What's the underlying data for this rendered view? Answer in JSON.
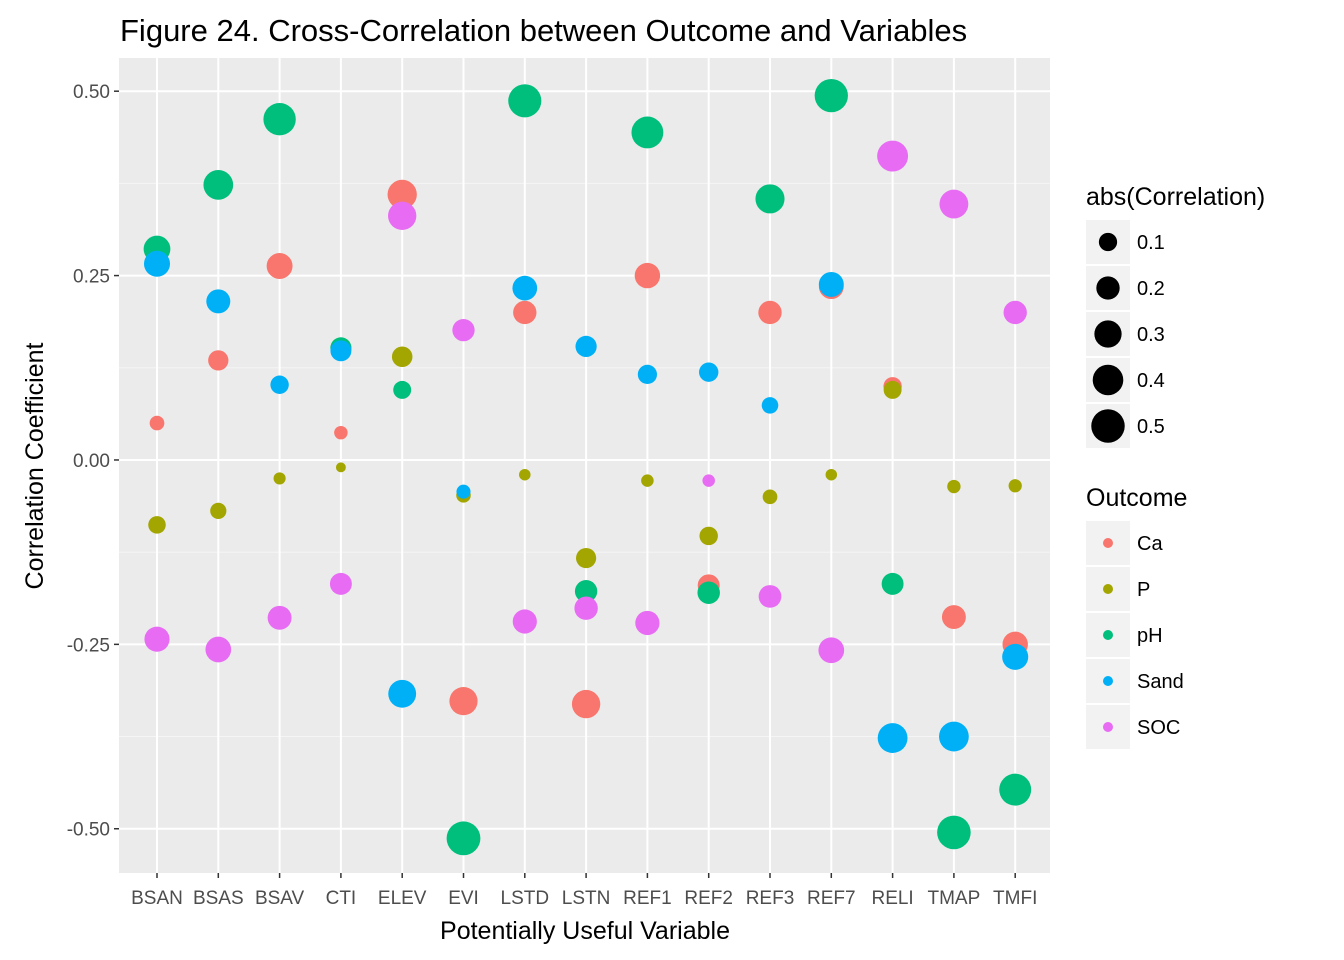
{
  "chart_data": {
    "type": "scatter",
    "title": "Figure 24. Cross-Correlation between Outcome and Variables",
    "xlabel": "Potentially Useful Variable",
    "ylabel": "Correlation Coefficient",
    "categories": [
      "BSAN",
      "BSAS",
      "BSAV",
      "CTI",
      "ELEV",
      "EVI",
      "LSTD",
      "LSTN",
      "REF1",
      "REF2",
      "REF3",
      "REF7",
      "RELI",
      "TMAP",
      "TMFI"
    ],
    "ylim": [
      -0.56,
      0.545
    ],
    "yticks": [
      0.5,
      0.25,
      0.0,
      -0.25,
      -0.5
    ],
    "ytick_labels": [
      "0.50",
      "0.25",
      "0.00",
      "-0.25",
      "-0.50"
    ],
    "grid": true,
    "legend_position": "right",
    "size_legend": {
      "title": "abs(Correlation)",
      "values": [
        0.1,
        0.2,
        0.3,
        0.4,
        0.5
      ],
      "labels": [
        "0.1",
        "0.2",
        "0.3",
        "0.4",
        "0.5"
      ]
    },
    "color_legend": {
      "title": "Outcome"
    },
    "series": [
      {
        "name": "Ca",
        "color": "#F8766D",
        "values": [
          0.05,
          0.135,
          0.263,
          0.037,
          0.36,
          -0.327,
          0.2,
          -0.331,
          0.25,
          -0.17,
          0.2,
          0.235,
          0.1,
          -0.213,
          -0.25
        ]
      },
      {
        "name": "P",
        "color": "#A3A500",
        "values": [
          -0.088,
          -0.069,
          -0.025,
          -0.01,
          0.14,
          -0.048,
          -0.02,
          -0.133,
          -0.028,
          -0.103,
          -0.05,
          -0.02,
          0.095,
          -0.036,
          -0.035
        ]
      },
      {
        "name": "pH",
        "color": "#00BF7D",
        "values": [
          0.286,
          0.373,
          0.462,
          0.152,
          0.095,
          -0.513,
          0.487,
          -0.178,
          0.444,
          -0.18,
          0.354,
          0.494,
          -0.168,
          -0.505,
          -0.447
        ]
      },
      {
        "name": "Sand",
        "color": "#00B0F6",
        "values": [
          0.266,
          0.215,
          0.102,
          0.148,
          -0.317,
          -0.043,
          0.233,
          0.154,
          0.116,
          0.119,
          0.074,
          0.238,
          -0.377,
          -0.375,
          -0.267
        ]
      },
      {
        "name": "SOC",
        "color": "#E76BF3",
        "values": [
          -0.243,
          -0.257,
          -0.214,
          -0.168,
          0.331,
          0.176,
          -0.219,
          -0.201,
          -0.221,
          -0.028,
          -0.185,
          -0.258,
          0.412,
          0.347,
          0.2
        ]
      }
    ]
  }
}
